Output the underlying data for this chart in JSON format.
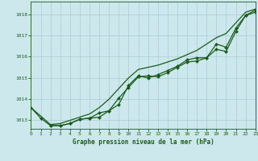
{
  "title": "Graphe pression niveau de la mer (hPa)",
  "background_color": "#cde8ed",
  "grid_color": "#aaccd4",
  "line_color": "#1a5c1a",
  "x_ticks": [
    0,
    1,
    2,
    3,
    4,
    5,
    6,
    7,
    8,
    9,
    10,
    11,
    12,
    13,
    14,
    15,
    16,
    17,
    18,
    19,
    20,
    21,
    22,
    23
  ],
  "y_ticks": [
    1013,
    1014,
    1015,
    1016,
    1017,
    1018
  ],
  "ylim": [
    1012.6,
    1018.6
  ],
  "xlim": [
    0,
    23
  ],
  "series": [
    {
      "x": [
        0,
        1,
        2,
        3,
        4,
        5,
        6,
        7,
        8,
        9,
        10,
        11,
        12,
        13,
        14,
        15,
        16,
        17,
        18,
        19,
        20,
        21,
        22,
        23
      ],
      "y": [
        1013.6,
        1013.2,
        1012.8,
        1012.85,
        1013.0,
        1013.15,
        1013.3,
        1013.6,
        1014.0,
        1014.5,
        1015.0,
        1015.4,
        1015.5,
        1015.6,
        1015.75,
        1015.9,
        1016.1,
        1016.3,
        1016.6,
        1016.9,
        1017.1,
        1017.6,
        1018.1,
        1018.25
      ],
      "marker": null,
      "linewidth": 0.9
    },
    {
      "x": [
        0,
        1,
        2,
        3,
        4,
        5,
        6,
        7,
        8,
        9,
        10,
        11,
        12,
        13,
        14,
        15,
        16,
        17,
        18,
        19,
        20,
        21,
        22,
        23
      ],
      "y": [
        1013.6,
        1013.1,
        1012.75,
        1012.75,
        1012.85,
        1013.05,
        1013.1,
        1013.15,
        1013.45,
        1014.05,
        1014.55,
        1015.05,
        1015.1,
        1015.05,
        1015.25,
        1015.5,
        1015.75,
        1015.8,
        1015.95,
        1016.35,
        1016.25,
        1017.2,
        1017.95,
        1018.1
      ],
      "marker": "D",
      "markersize": 2.0,
      "linewidth": 0.9
    },
    {
      "x": [
        2,
        3,
        4,
        5,
        6,
        7,
        8,
        9,
        10,
        11,
        12,
        13,
        14,
        15,
        16,
        17,
        18,
        19,
        20,
        21,
        22,
        23
      ],
      "y": [
        1012.75,
        1012.75,
        1012.85,
        1013.05,
        1013.1,
        1013.35,
        1013.45,
        1013.75,
        1014.65,
        1015.1,
        1015.0,
        1015.15,
        1015.35,
        1015.55,
        1015.85,
        1015.95,
        1015.95,
        1016.6,
        1016.45,
        1017.35,
        1017.95,
        1018.2
      ],
      "marker": "D",
      "markersize": 2.0,
      "linewidth": 0.9
    }
  ],
  "figsize": [
    3.2,
    2.0
  ],
  "dpi": 100
}
